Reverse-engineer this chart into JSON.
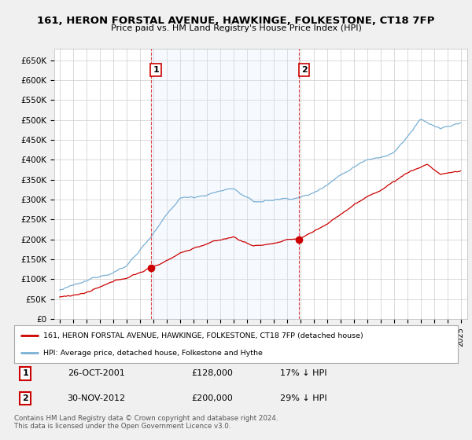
{
  "title": "161, HERON FORSTAL AVENUE, HAWKINGE, FOLKESTONE, CT18 7FP",
  "subtitle": "Price paid vs. HM Land Registry's House Price Index (HPI)",
  "ylim": [
    0,
    680000
  ],
  "yticks": [
    0,
    50000,
    100000,
    150000,
    200000,
    250000,
    300000,
    350000,
    400000,
    450000,
    500000,
    550000,
    600000,
    650000
  ],
  "ytick_labels": [
    "£0",
    "£50K",
    "£100K",
    "£150K",
    "£200K",
    "£250K",
    "£300K",
    "£350K",
    "£400K",
    "£450K",
    "£500K",
    "£550K",
    "£600K",
    "£650K"
  ],
  "bg_color": "#f0f0f0",
  "plot_bg_color": "#ffffff",
  "grid_color": "#cccccc",
  "red_line_color": "#cc0000",
  "blue_line_color": "#7ab0d4",
  "shade_color": "#ddeeff",
  "sale1_x": 2001.82,
  "sale1_y": 128000,
  "sale1_label": "1",
  "sale1_date": "26-OCT-2001",
  "sale1_price": "£128,000",
  "sale1_pct": "17% ↓ HPI",
  "sale2_x": 2012.92,
  "sale2_y": 200000,
  "sale2_label": "2",
  "sale2_date": "30-NOV-2012",
  "sale2_price": "£200,000",
  "sale2_pct": "29% ↓ HPI",
  "vline_color": "#dd4444",
  "legend_line1": "161, HERON FORSTAL AVENUE, HAWKINGE, FOLKESTONE, CT18 7FP (detached house)",
  "legend_line2": "HPI: Average price, detached house, Folkestone and Hythe",
  "footer": "Contains HM Land Registry data © Crown copyright and database right 2024.\nThis data is licensed under the Open Government Licence v3.0.",
  "xtick_start": 1995,
  "xtick_end": 2026
}
